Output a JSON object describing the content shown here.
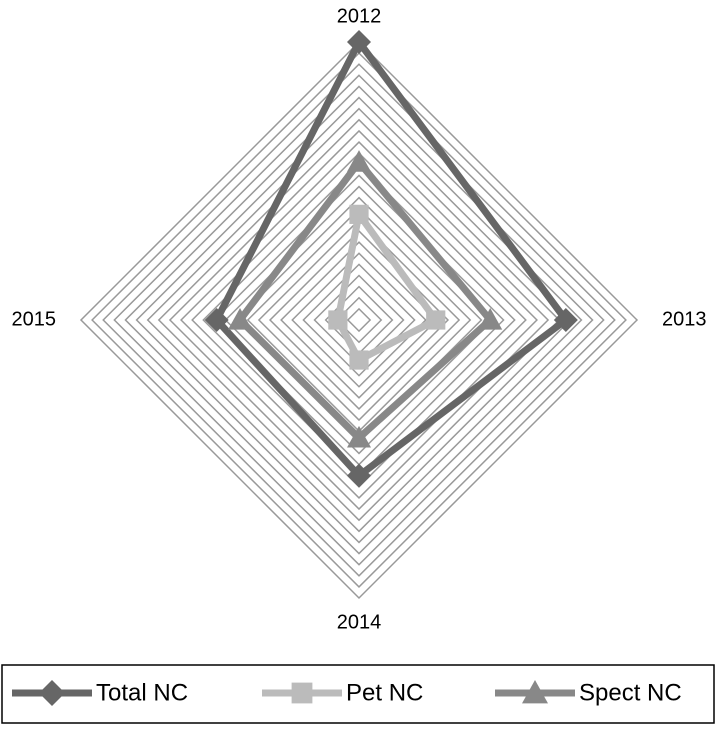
{
  "chart_data": {
    "type": "radar",
    "categories": [
      "2012",
      "2013",
      "2014",
      "2015"
    ],
    "series": [
      {
        "name": "Total NC",
        "color": "#666666",
        "marker": "diamond",
        "values": [
          25,
          18.6,
          14,
          12.8
        ]
      },
      {
        "name": "Pet NC",
        "color": "#bbbbbb",
        "marker": "square",
        "values": [
          9.5,
          6.9,
          3.6,
          1.9
        ]
      },
      {
        "name": "Spect NC",
        "color": "#888888",
        "marker": "triangle",
        "values": [
          14.2,
          11.8,
          10.6,
          10.7
        ]
      }
    ],
    "ylim": [
      0,
      25
    ],
    "yticks": [
      1,
      2,
      3,
      4,
      5,
      6,
      7,
      8,
      9,
      10,
      11,
      12,
      13,
      14,
      15,
      16,
      17,
      18,
      19,
      20,
      21,
      22,
      23,
      24,
      25
    ],
    "grid": true,
    "legend": "bottom"
  }
}
